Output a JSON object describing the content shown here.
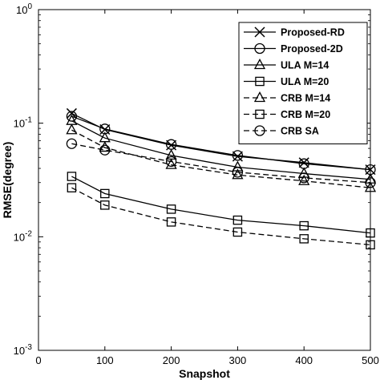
{
  "chart_data": {
    "type": "line",
    "title": "",
    "xlabel": "Snapshot",
    "ylabel": "RMSE(degree)",
    "xlim": [
      0,
      500
    ],
    "ylim": [
      0.001,
      1
    ],
    "yscale": "log",
    "grid": false,
    "legend_position": "top-right",
    "x_ticks": [
      "0",
      "100",
      "200",
      "300",
      "400",
      "500"
    ],
    "y_ticks": [
      {
        "base": "10",
        "exp": "-3"
      },
      {
        "base": "10",
        "exp": "-2"
      },
      {
        "base": "10",
        "exp": "-1"
      },
      {
        "base": "10",
        "exp": "0"
      }
    ],
    "x": [
      50,
      100,
      200,
      300,
      400,
      500
    ],
    "series": [
      {
        "name": "Proposed-RD",
        "marker": "x",
        "line": "solid",
        "values": [
          0.122,
          0.088,
          0.064,
          0.051,
          0.045,
          0.039
        ]
      },
      {
        "name": "Proposed-2D",
        "marker": "circle",
        "line": "solid",
        "values": [
          0.115,
          0.089,
          0.065,
          0.052,
          0.044,
          0.039
        ]
      },
      {
        "name": "ULA M=14",
        "marker": "triangle",
        "line": "solid",
        "values": [
          0.105,
          0.074,
          0.052,
          0.041,
          0.036,
          0.032
        ]
      },
      {
        "name": "ULA M=20",
        "marker": "square",
        "line": "solid",
        "values": [
          0.034,
          0.024,
          0.0175,
          0.014,
          0.0125,
          0.0108
        ]
      },
      {
        "name": "CRB M=14",
        "marker": "triangle",
        "line": "dashed",
        "values": [
          0.087,
          0.061,
          0.043,
          0.035,
          0.031,
          0.027
        ]
      },
      {
        "name": "CRB M=20",
        "marker": "square",
        "line": "dashed",
        "values": [
          0.027,
          0.019,
          0.0135,
          0.011,
          0.0096,
          0.0085
        ]
      },
      {
        "name": "CRB SA",
        "marker": "circle",
        "line": "dashed",
        "values": [
          0.066,
          0.058,
          0.046,
          0.037,
          0.033,
          0.03
        ]
      }
    ]
  }
}
